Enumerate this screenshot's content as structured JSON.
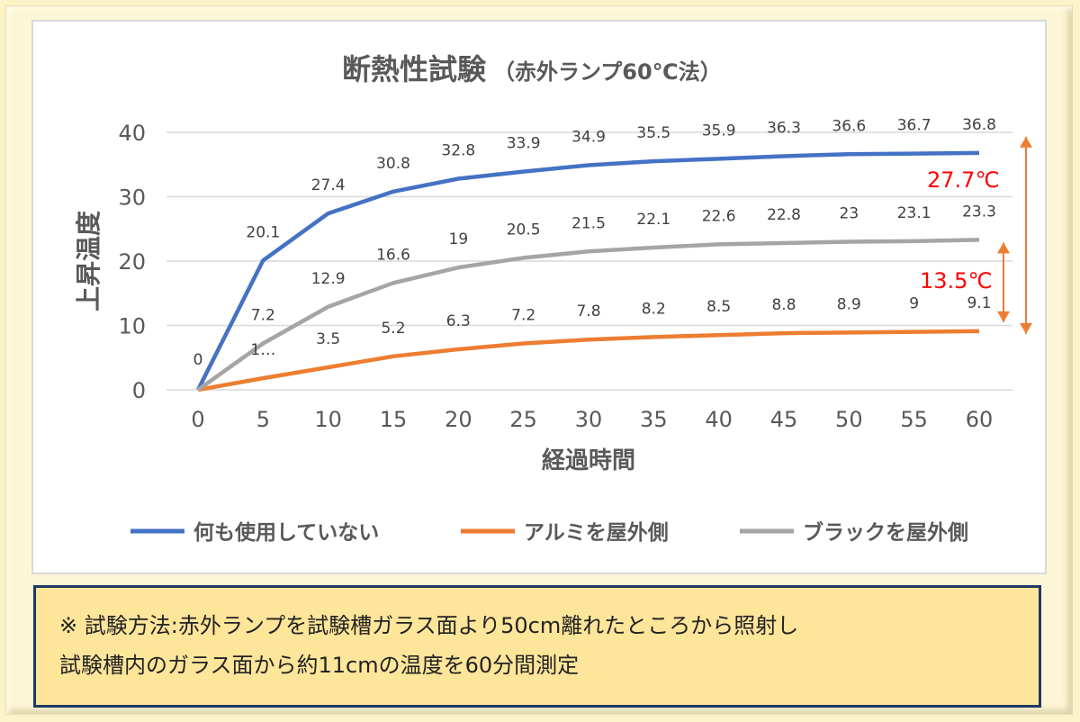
{
  "chart_data": {
    "type": "line",
    "title": "断熱性試験",
    "subtitle": "（赤外ランプ60℃法）",
    "xlabel": "経過時間",
    "ylabel": "上昇温度",
    "x": [
      0,
      5,
      10,
      15,
      20,
      25,
      30,
      35,
      40,
      45,
      50,
      55,
      60
    ],
    "xticks": [
      "0",
      "5",
      "10",
      "15",
      "20",
      "25",
      "30",
      "35",
      "40",
      "45",
      "50",
      "55",
      "60"
    ],
    "yticks": [
      "0",
      "10",
      "20",
      "30",
      "40"
    ],
    "ylim": [
      0,
      40
    ],
    "grid": true,
    "legend_position": "bottom",
    "series": [
      {
        "name": "何も使用していない",
        "color": "#4472c4",
        "values": [
          0,
          20.1,
          27.4,
          30.8,
          32.8,
          33.9,
          34.9,
          35.5,
          35.9,
          36.3,
          36.6,
          36.7,
          36.8
        ],
        "labels": [
          "0",
          "20.1",
          "27.4",
          "30.8",
          "32.8",
          "33.9",
          "34.9",
          "35.5",
          "35.9",
          "36.3",
          "36.6",
          "36.7",
          "36.8"
        ]
      },
      {
        "name": "アルミを屋外側",
        "color": "#ed7d31",
        "values": [
          0,
          1.8,
          3.5,
          5.2,
          6.3,
          7.2,
          7.8,
          8.2,
          8.5,
          8.8,
          8.9,
          9,
          9.1
        ],
        "labels": [
          "",
          "1…",
          "3.5",
          "5.2",
          "6.3",
          "7.2",
          "7.8",
          "8.2",
          "8.5",
          "8.8",
          "8.9",
          "9",
          "9.1"
        ]
      },
      {
        "name": "ブラックを屋外側",
        "color": "#a5a5a5",
        "values": [
          0,
          7.2,
          12.9,
          16.6,
          19,
          20.5,
          21.5,
          22.1,
          22.6,
          22.8,
          23,
          23.1,
          23.3
        ],
        "labels": [
          "",
          "7.2",
          "12.9",
          "16.6",
          "19",
          "20.5",
          "21.5",
          "22.1",
          "22.6",
          "22.8",
          "23",
          "23.1",
          "23.3"
        ]
      }
    ],
    "annotations": [
      {
        "text": "27.7℃",
        "color": "#ff0000",
        "from": 36.8,
        "to": 9.1
      },
      {
        "text": "13.5℃",
        "color": "#ff0000",
        "from": 23.3,
        "to": 9.1
      }
    ],
    "arrow_color": "#ed7d31"
  },
  "note": {
    "line1": "※ 試験方法:赤外ランプを試験槽ガラス面より50cm離れたところから照射し",
    "line2": "試験槽内のガラス面から約11cmの温度を60分間測定"
  }
}
